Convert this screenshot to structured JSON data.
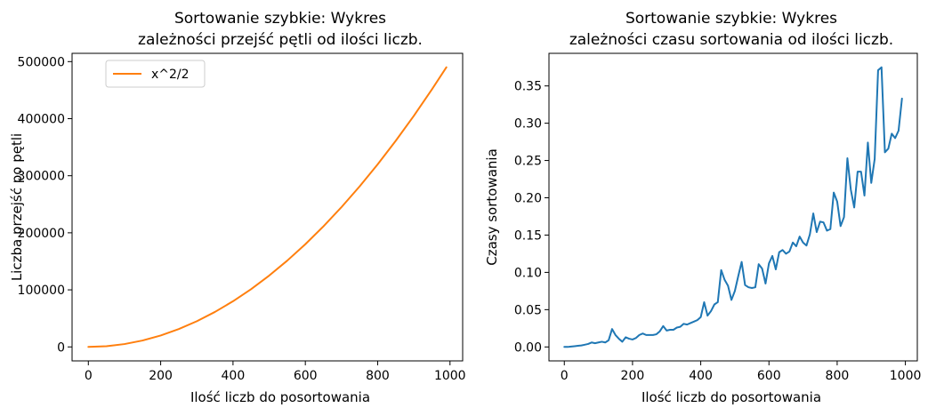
{
  "colors": {
    "series_blue": "#1f77b4",
    "series_orange": "#ff7f0e",
    "axis": "#000000",
    "legend_border": "#cccccc"
  },
  "chart_data": [
    {
      "type": "line",
      "title": "Sortowanie szybkie: Wykres\nzależności przejść  pętli od ilości liczb.",
      "title_lines": [
        "Sortowanie szybkie: Wykres",
        "zależności przejść  pętli od ilości liczb."
      ],
      "xlabel": "Ilość liczb do posortowania",
      "ylabel": "Liczba przejść po pętli",
      "xlim": [
        -45,
        1035
      ],
      "ylim": [
        -24500,
        514500
      ],
      "xticks": [
        0,
        200,
        400,
        600,
        800,
        1000
      ],
      "xtick_labels": [
        "0",
        "200",
        "400",
        "600",
        "800",
        "1000"
      ],
      "yticks": [
        0,
        100000,
        200000,
        300000,
        400000,
        500000
      ],
      "ytick_labels": [
        "0",
        "100000",
        "200000",
        "300000",
        "400000",
        "500000"
      ],
      "legend": {
        "placement": "top-left",
        "entries": [
          "x^2/2"
        ]
      },
      "grid": false,
      "series": [
        {
          "name": "x^2/2",
          "color": "#ff7f0e",
          "formula": "x^2/2",
          "x": [
            0,
            50,
            100,
            150,
            200,
            250,
            300,
            350,
            400,
            450,
            500,
            550,
            600,
            650,
            700,
            750,
            800,
            850,
            900,
            950,
            990
          ],
          "values": [
            0,
            1250,
            5000,
            11250,
            20000,
            31250,
            45000,
            61250,
            80000,
            101250,
            125000,
            151250,
            180000,
            211250,
            245000,
            281250,
            320000,
            361250,
            405000,
            451250,
            490050
          ]
        }
      ]
    },
    {
      "type": "line",
      "title": "Sortowanie szybkie: Wykres\nzależności czasu sortowania od ilości liczb.",
      "title_lines": [
        "Sortowanie szybkie: Wykres",
        "zależności czasu sortowania od ilości liczb."
      ],
      "xlabel": "Ilość liczb do posortowania",
      "ylabel": "Czasy sortowania",
      "xlim": [
        -45,
        1035
      ],
      "ylim": [
        -0.0187,
        0.3937
      ],
      "xticks": [
        0,
        200,
        400,
        600,
        800,
        1000
      ],
      "xtick_labels": [
        "0",
        "200",
        "400",
        "600",
        "800",
        "1000"
      ],
      "yticks": [
        0.0,
        0.05,
        0.1,
        0.15,
        0.2,
        0.25,
        0.3,
        0.35
      ],
      "ytick_labels": [
        "0.00",
        "0.05",
        "0.10",
        "0.15",
        "0.20",
        "0.25",
        "0.30",
        "0.35"
      ],
      "grid": false,
      "series": [
        {
          "color": "#1f77b4",
          "x": [
            0,
            10,
            20,
            30,
            40,
            50,
            60,
            70,
            80,
            90,
            100,
            110,
            120,
            130,
            140,
            150,
            160,
            170,
            180,
            190,
            200,
            210,
            220,
            230,
            240,
            250,
            260,
            270,
            280,
            290,
            300,
            310,
            320,
            330,
            340,
            350,
            360,
            370,
            380,
            390,
            400,
            410,
            420,
            430,
            440,
            450,
            460,
            470,
            480,
            490,
            500,
            510,
            520,
            530,
            540,
            550,
            560,
            570,
            580,
            590,
            600,
            610,
            620,
            630,
            640,
            650,
            660,
            670,
            680,
            690,
            700,
            710,
            720,
            730,
            740,
            750,
            760,
            770,
            780,
            790,
            800,
            810,
            820,
            830,
            840,
            850,
            860,
            870,
            880,
            890,
            900,
            910,
            920,
            930,
            940,
            950,
            960,
            970,
            980,
            990
          ],
          "values": [
            0.0,
            0.0,
            0.0005,
            0.001,
            0.0015,
            0.002,
            0.003,
            0.004,
            0.006,
            0.005,
            0.006,
            0.007,
            0.006,
            0.009,
            0.024,
            0.016,
            0.011,
            0.007,
            0.013,
            0.011,
            0.01,
            0.012,
            0.016,
            0.018,
            0.016,
            0.016,
            0.016,
            0.017,
            0.021,
            0.028,
            0.022,
            0.023,
            0.023,
            0.026,
            0.027,
            0.031,
            0.03,
            0.032,
            0.034,
            0.036,
            0.04,
            0.06,
            0.042,
            0.048,
            0.057,
            0.06,
            0.103,
            0.09,
            0.082,
            0.063,
            0.075,
            0.095,
            0.114,
            0.083,
            0.08,
            0.079,
            0.08,
            0.111,
            0.105,
            0.085,
            0.112,
            0.122,
            0.104,
            0.127,
            0.13,
            0.125,
            0.128,
            0.14,
            0.135,
            0.148,
            0.14,
            0.136,
            0.151,
            0.179,
            0.154,
            0.168,
            0.167,
            0.156,
            0.158,
            0.207,
            0.195,
            0.162,
            0.174,
            0.253,
            0.211,
            0.187,
            0.235,
            0.235,
            0.203,
            0.274,
            0.22,
            0.252,
            0.371,
            0.375,
            0.261,
            0.266,
            0.286,
            0.28,
            0.29,
            0.333
          ]
        },
        {
          "color": "#ff7f0e",
          "values": []
        }
      ]
    }
  ]
}
